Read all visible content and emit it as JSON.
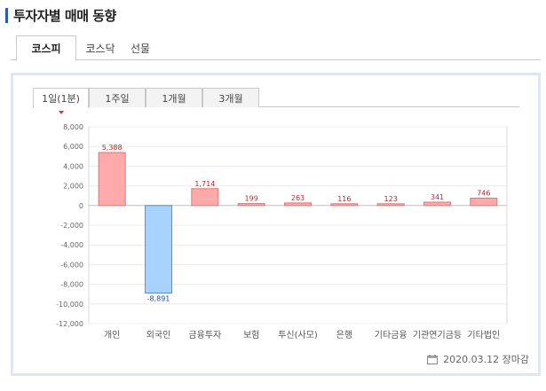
{
  "header": {
    "title": "투자자별 매매 동향"
  },
  "market_tabs": [
    {
      "label": "코스피",
      "active": true
    },
    {
      "label": "코스닥",
      "active": false
    },
    {
      "label": "선물",
      "active": false
    }
  ],
  "period_tabs": [
    {
      "label": "1일(1분)",
      "active": true
    },
    {
      "label": "1주일",
      "active": false
    },
    {
      "label": "1개월",
      "active": false
    },
    {
      "label": "3개월",
      "active": false
    }
  ],
  "footer": {
    "timestamp": "2020.03.12 장마감",
    "icon": "calendar-icon"
  },
  "colors": {
    "positive": "#ffaaaa",
    "positive_stroke": "#e57373",
    "negative": "#a8d2ff",
    "negative_stroke": "#5b8fd1",
    "positive_text": "#c0282d",
    "negative_text": "#1a4fa0",
    "accent": "#2a5db0",
    "panel_border": "#dde7f1"
  },
  "chart_data": {
    "type": "bar",
    "categories": [
      "개인",
      "외국인",
      "금융투자",
      "보험",
      "투신(사모)",
      "은행",
      "기타금융",
      "기관연기금등",
      "기타법인"
    ],
    "values": [
      5388,
      -8891,
      1714,
      199,
      263,
      116,
      123,
      341,
      746
    ],
    "value_labels": [
      "5,388",
      "-8,891",
      "1,714",
      "199",
      "263",
      "116",
      "123",
      "341",
      "746"
    ],
    "yticks": [
      8000,
      6000,
      4000,
      2000,
      0,
      -2000,
      -4000,
      -6000,
      -8000,
      -10000,
      -12000
    ],
    "ytick_labels": [
      "8,000",
      "6,000",
      "4,000",
      "2,000",
      "0",
      "-2,000",
      "-4,000",
      "-6,000",
      "-8,000",
      "-10,000",
      "-12,000"
    ],
    "ylim": [
      -12000,
      8000
    ],
    "grid": true,
    "title": "",
    "xlabel": "",
    "ylabel": ""
  }
}
